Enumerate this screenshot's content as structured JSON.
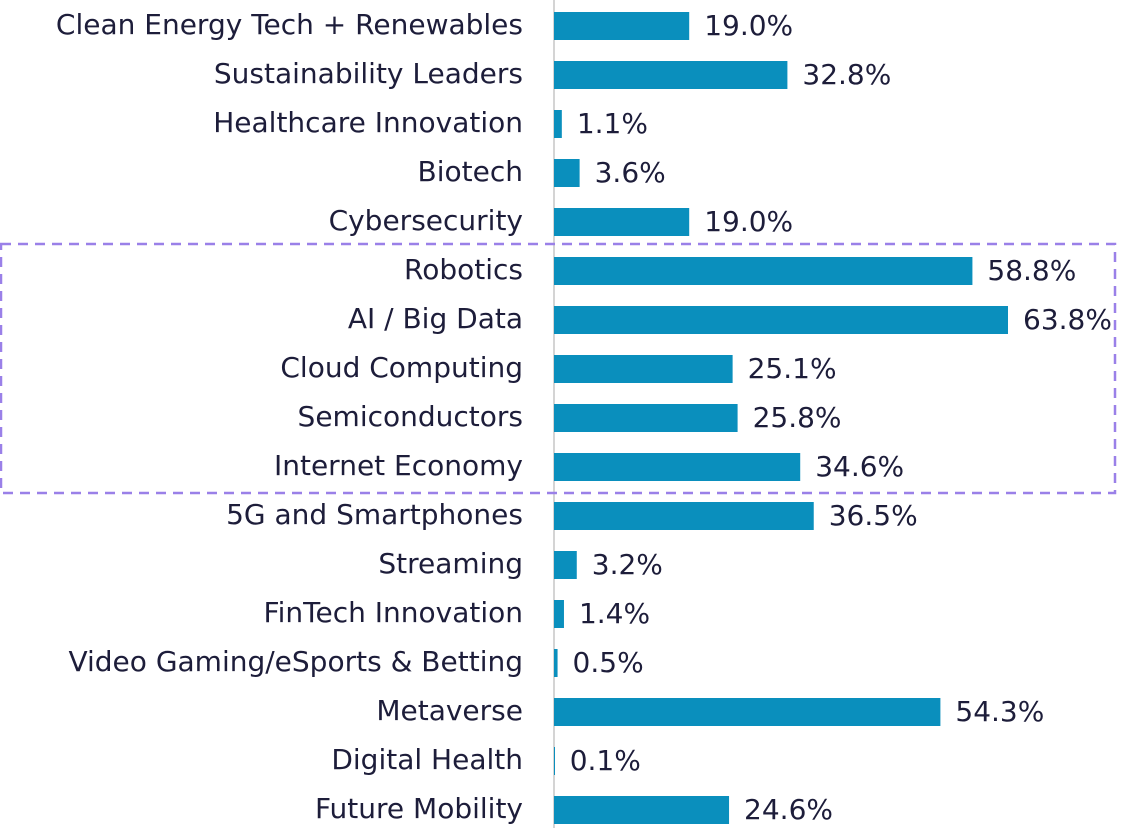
{
  "chart_data": {
    "type": "barh",
    "categories": [
      "Clean Energy Tech + Renewables",
      "Sustainability Leaders",
      "Healthcare Innovation",
      "Biotech",
      "Cybersecurity",
      "Robotics",
      "AI / Big Data",
      "Cloud Computing",
      "Semiconductors",
      "Internet Economy",
      "5G and Smartphones",
      "Streaming",
      "FinTech Innovation",
      "Video Gaming/eSports & Betting",
      "Metaverse",
      "Digital Health",
      "Future Mobility"
    ],
    "values": [
      19.0,
      32.8,
      1.1,
      3.6,
      19.0,
      58.8,
      63.8,
      25.1,
      25.8,
      34.6,
      36.5,
      3.2,
      1.4,
      0.5,
      54.3,
      0.1,
      24.6
    ],
    "value_labels": [
      "19.0%",
      "32.8%",
      "1.1%",
      "3.6%",
      "19.0%",
      "58.8%",
      "63.8%",
      "25.1%",
      "25.8%",
      "34.6%",
      "36.5%",
      "3.2%",
      "1.4%",
      "0.5%",
      "54.3%",
      "0.1%",
      "24.6%"
    ],
    "color": "#0a8fbd"
  }
}
